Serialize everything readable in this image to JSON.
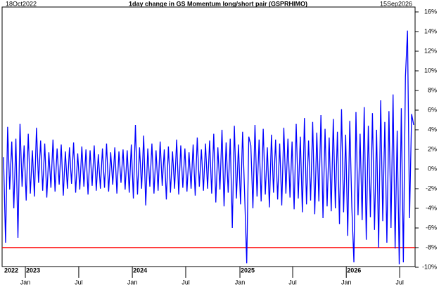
{
  "chart_data": {
    "type": "line",
    "title": "1day change in GS Momentum long/short pair (GSPRHIMO)",
    "start_label": "18Oct2022",
    "end_label": "15Sep2026",
    "series": [
      {
        "name": "GSPRHIMO 1day change",
        "color": "#0000ff",
        "values": [
          1.2,
          -7.5,
          4.3,
          -2.1,
          2.8,
          -4.0,
          3.1,
          -7.0,
          4.6,
          -1.8,
          2.4,
          -3.2,
          3.6,
          -2.5,
          1.9,
          -2.8,
          4.2,
          -1.4,
          2.9,
          -2.2,
          2.6,
          -2.9,
          1.7,
          -1.9,
          3.0,
          -2.3,
          2.1,
          -1.6,
          2.5,
          -2.7,
          1.8,
          -2.0,
          2.2,
          -1.5,
          2.7,
          -2.4,
          1.6,
          -2.1,
          2.3,
          -1.8,
          2.0,
          -2.6,
          1.9,
          -1.7,
          2.4,
          -2.2,
          1.5,
          -2.0,
          2.1,
          -1.9,
          2.6,
          -2.3,
          1.7,
          -1.6,
          2.2,
          -2.5,
          1.8,
          -1.4,
          2.0,
          -2.1,
          1.9,
          -2.4,
          2.5,
          -3.0,
          4.5,
          -2.6,
          2.2,
          -2.0,
          3.4,
          -3.7,
          2.1,
          -1.8,
          2.6,
          -2.5,
          1.9,
          -2.2,
          2.8,
          -1.7,
          2.0,
          -3.1,
          2.3,
          -2.4,
          1.8,
          -2.0,
          3.0,
          -2.6,
          2.4,
          -1.9,
          2.1,
          -2.3,
          1.7,
          -2.0,
          2.5,
          -2.7,
          3.2,
          -1.8,
          2.0,
          -2.2,
          2.6,
          -2.0,
          2.9,
          -2.5,
          3.6,
          -3.4,
          2.2,
          -2.1,
          4.0,
          -3.8,
          2.7,
          -2.4,
          3.1,
          -6.0,
          4.4,
          -3.0,
          2.5,
          -3.6,
          3.8,
          -2.7,
          -9.6,
          3.3,
          2.4,
          -4.0,
          4.5,
          -2.8,
          3.0,
          -3.3,
          4.1,
          -2.6,
          2.2,
          -3.9,
          3.5,
          -2.4,
          3.0,
          -3.1,
          2.6,
          -3.7,
          4.2,
          -2.5,
          3.1,
          -2.9,
          2.8,
          -4.1,
          4.6,
          -3.0,
          3.3,
          -4.4,
          5.2,
          -3.6,
          2.9,
          -3.2,
          4.8,
          -4.6,
          3.7,
          -3.3,
          5.5,
          -5.0,
          4.1,
          -3.8,
          3.2,
          -4.3,
          5.1,
          -4.0,
          3.8,
          -5.6,
          6.1,
          -4.4,
          3.5,
          -6.8,
          4.9,
          -3.9,
          -9.5,
          5.8,
          -4.7,
          3.6,
          -5.2,
          6.3,
          -7.2,
          4.4,
          -4.9,
          5.7,
          -6.2,
          4.0,
          -8.0,
          7.0,
          -5.3,
          4.8,
          -7.5,
          5.9,
          -6.0,
          7.6,
          -8.1,
          3.9,
          -9.7,
          6.2,
          -9.5,
          9.4,
          14.1,
          -5.0,
          5.6,
          4.5
        ]
      }
    ],
    "xlim": [
      0,
      199
    ],
    "xticks": [
      {
        "value": 10.6,
        "label": "Jan"
      },
      {
        "value": 36.5,
        "label": "Jul"
      },
      {
        "value": 62.5,
        "label": "Jan"
      },
      {
        "value": 88.4,
        "label": "Jul"
      },
      {
        "value": 114.7,
        "label": "Jan"
      },
      {
        "value": 140.3,
        "label": "Jul"
      },
      {
        "value": 166.3,
        "label": "Jan"
      },
      {
        "value": 192.2,
        "label": "Jul"
      }
    ],
    "year_ticks": [
      {
        "value": 0,
        "label": "2022"
      },
      {
        "value": 10.6,
        "label": "2023"
      },
      {
        "value": 62.5,
        "label": "2024"
      },
      {
        "value": 114.7,
        "label": "2025"
      },
      {
        "value": 166.3,
        "label": "2026"
      }
    ],
    "ylim": [
      -10,
      16
    ],
    "yticks": [
      {
        "value": 16,
        "label": "16%"
      },
      {
        "value": 14,
        "label": "14%"
      },
      {
        "value": 12,
        "label": "12%"
      },
      {
        "value": 10,
        "label": "10%"
      },
      {
        "value": 8,
        "label": "8%"
      },
      {
        "value": 6,
        "label": "6%"
      },
      {
        "value": 4,
        "label": "4%"
      },
      {
        "value": 2,
        "label": "2%"
      },
      {
        "value": 0,
        "label": "0%"
      },
      {
        "value": -2,
        "label": "-2%"
      },
      {
        "value": -4,
        "label": "-4%"
      },
      {
        "value": -6,
        "label": "-6%"
      },
      {
        "value": -8,
        "label": "-8%"
      },
      {
        "value": -10,
        "label": "-10%"
      }
    ],
    "reference_line": {
      "value": -8,
      "color": "#ff0000"
    },
    "grid": false
  }
}
